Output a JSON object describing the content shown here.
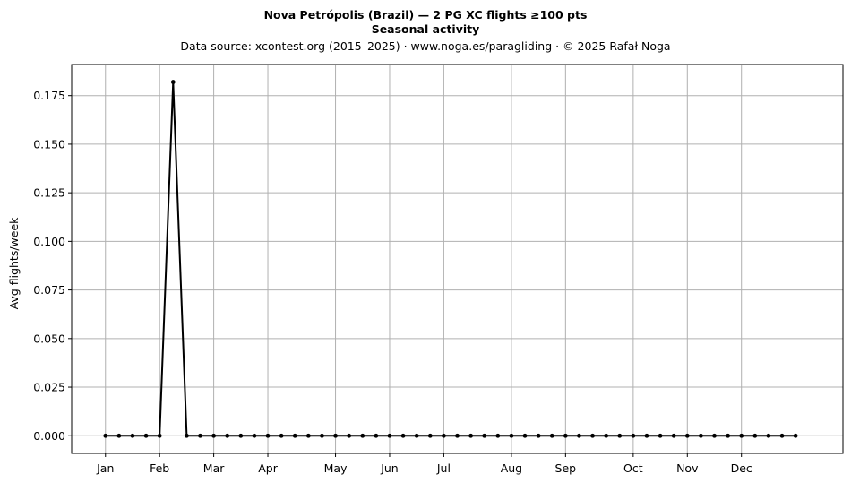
{
  "chart_data": {
    "type": "line",
    "title": "Nova Petrópolis (Brazil)  —  2 PG XC flights ≥100 pts",
    "subtitle": "Seasonal activity",
    "source": "Data source: xcontest.org (2015–2025)  ·  www.noga.es/paragliding  ·  © 2025 Rafał Noga",
    "xlabel": "",
    "ylabel": "Avg flights/week",
    "x_tick_labels": [
      "Jan",
      "Feb",
      "Mar",
      "Apr",
      "May",
      "Jun",
      "Jul",
      "Aug",
      "Sep",
      "Oct",
      "Nov",
      "Dec"
    ],
    "x_tick_weeks": [
      1,
      5,
      9,
      13,
      18,
      22,
      26,
      31,
      35,
      40,
      44,
      48
    ],
    "y_ticks": [
      "0.000",
      "0.025",
      "0.050",
      "0.075",
      "0.100",
      "0.125",
      "0.150",
      "0.175"
    ],
    "xlim": [
      -1.5,
      55.5
    ],
    "ylim": [
      -0.0091,
      0.191
    ],
    "grid": true,
    "line_color": "#000000",
    "grid_color": "#b0b0b0",
    "weeks": [
      1,
      2,
      3,
      4,
      5,
      6,
      7,
      8,
      9,
      10,
      11,
      12,
      13,
      14,
      15,
      16,
      17,
      18,
      19,
      20,
      21,
      22,
      23,
      24,
      25,
      26,
      27,
      28,
      29,
      30,
      31,
      32,
      33,
      34,
      35,
      36,
      37,
      38,
      39,
      40,
      41,
      42,
      43,
      44,
      45,
      46,
      47,
      48,
      49,
      50,
      51,
      52
    ],
    "values": [
      0,
      0,
      0,
      0,
      0,
      0.182,
      0,
      0,
      0,
      0,
      0,
      0,
      0,
      0,
      0,
      0,
      0,
      0,
      0,
      0,
      0,
      0,
      0,
      0,
      0,
      0,
      0,
      0,
      0,
      0,
      0,
      0,
      0,
      0,
      0,
      0,
      0,
      0,
      0,
      0,
      0,
      0,
      0,
      0,
      0,
      0,
      0,
      0,
      0,
      0,
      0,
      0
    ]
  }
}
